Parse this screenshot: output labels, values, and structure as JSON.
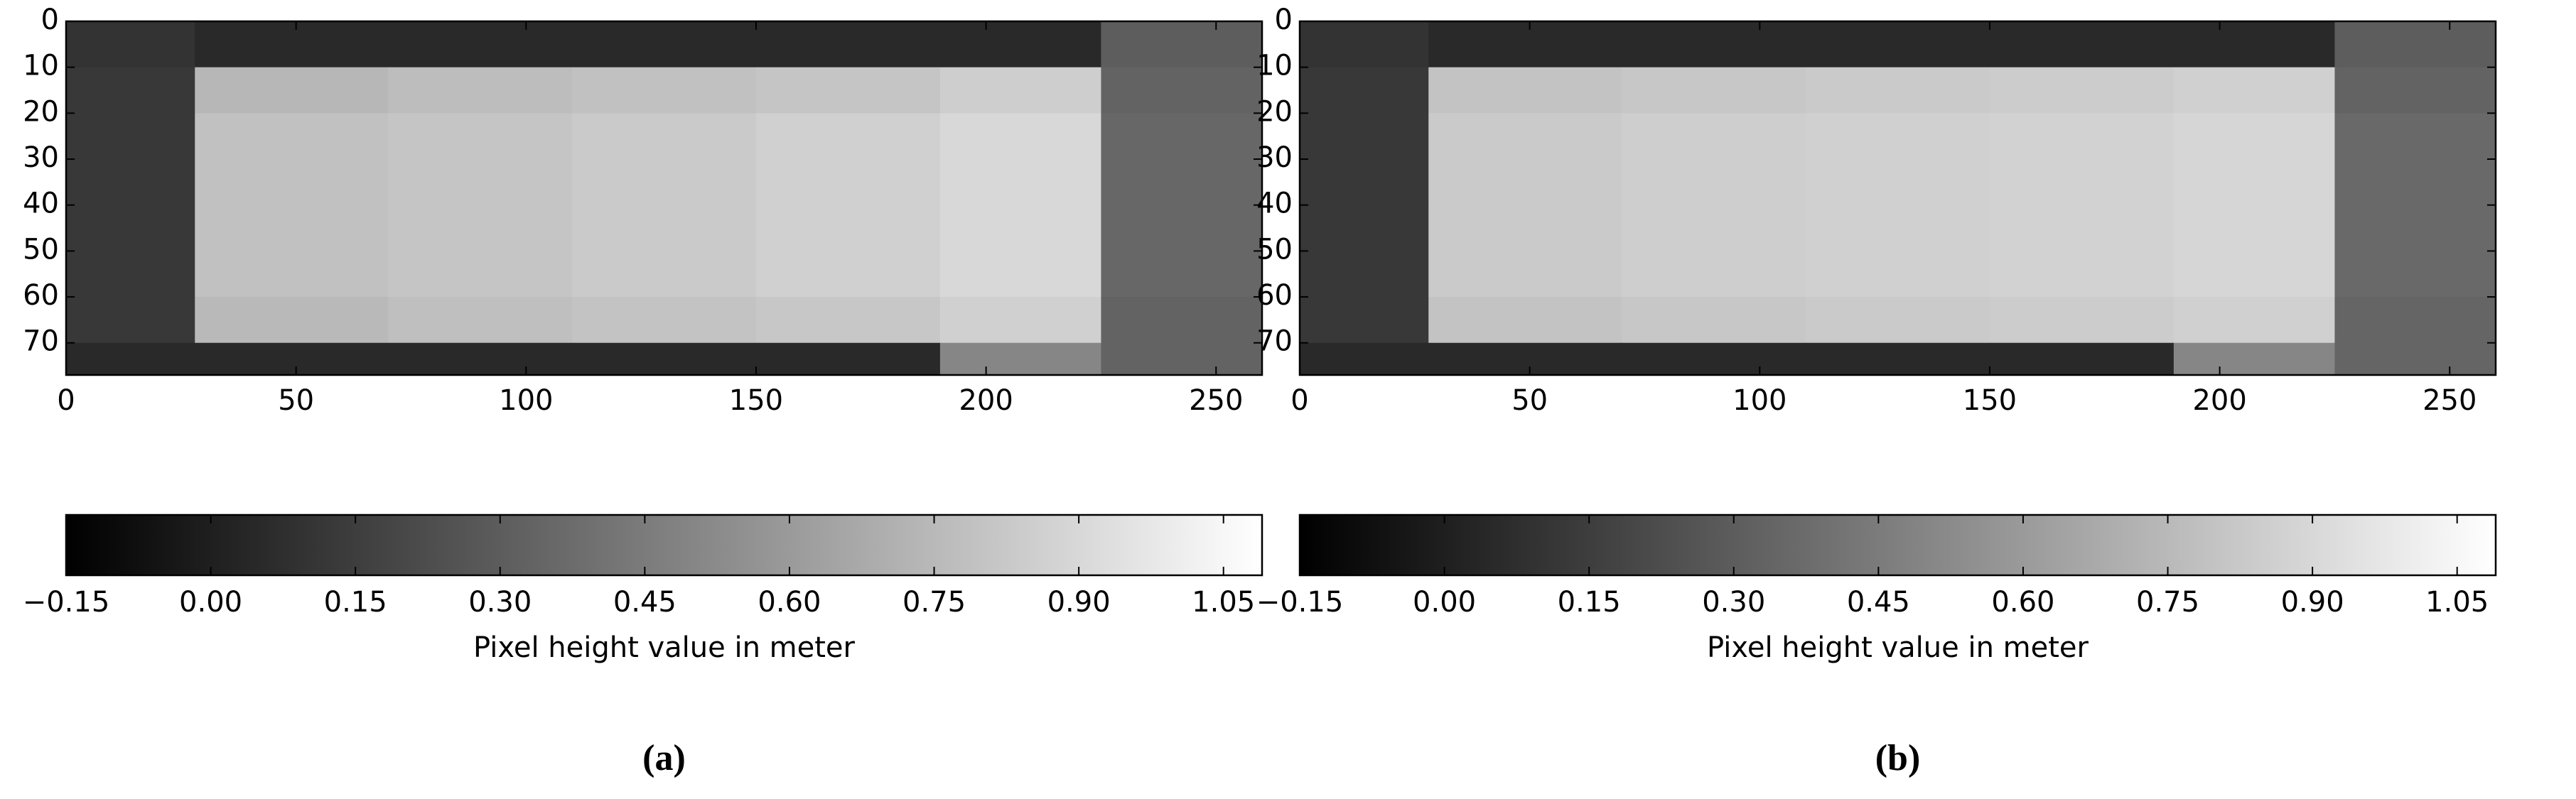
{
  "chart_data": [
    {
      "type": "heatmap",
      "caption": "(a)",
      "x": [
        0,
        28,
        70,
        110,
        150,
        190,
        225,
        260
      ],
      "y": [
        0,
        10,
        20,
        40,
        60,
        70,
        77
      ],
      "z": [
        [
          0.1,
          0.05,
          0.05,
          0.05,
          0.05,
          0.05,
          0.3
        ],
        [
          0.12,
          0.74,
          0.77,
          0.79,
          0.81,
          0.85,
          0.33
        ],
        [
          0.12,
          0.79,
          0.81,
          0.83,
          0.86,
          0.9,
          0.35
        ],
        [
          0.12,
          0.79,
          0.81,
          0.83,
          0.86,
          0.9,
          0.35
        ],
        [
          0.12,
          0.75,
          0.78,
          0.8,
          0.82,
          0.86,
          0.33
        ],
        [
          0.05,
          0.05,
          0.05,
          0.05,
          0.05,
          0.5,
          0.33
        ]
      ],
      "xlim": [
        0,
        260
      ],
      "ylim": [
        77,
        0
      ],
      "xticks": [
        0,
        50,
        100,
        150,
        200,
        250
      ],
      "yticks": [
        0,
        10,
        20,
        30,
        40,
        50,
        60,
        70
      ],
      "colormap": [
        "#000000",
        "#ffffff"
      ],
      "colorbar": {
        "label": "Pixel height value in meter",
        "lim": [
          -0.15,
          1.09
        ],
        "ticks": [
          {
            "value": -0.15,
            "label": "−0.15"
          },
          {
            "value": 0,
            "label": "0.00"
          },
          0.15,
          {
            "value": 0.3,
            "label": "0.30"
          },
          0.45,
          {
            "value": 0.6,
            "label": "0.60"
          },
          0.75,
          {
            "value": 0.9,
            "label": "0.90"
          },
          1.05
        ]
      }
    },
    {
      "type": "heatmap",
      "caption": "(b)",
      "x": [
        0,
        28,
        70,
        110,
        150,
        190,
        225,
        260
      ],
      "y": [
        0,
        10,
        20,
        40,
        60,
        70,
        77
      ],
      "z": [
        [
          0.1,
          0.05,
          0.05,
          0.05,
          0.05,
          0.05,
          0.3
        ],
        [
          0.12,
          0.8,
          0.82,
          0.83,
          0.84,
          0.86,
          0.33
        ],
        [
          0.12,
          0.83,
          0.85,
          0.86,
          0.87,
          0.89,
          0.36
        ],
        [
          0.12,
          0.83,
          0.85,
          0.86,
          0.87,
          0.89,
          0.36
        ],
        [
          0.12,
          0.8,
          0.82,
          0.83,
          0.84,
          0.86,
          0.34
        ],
        [
          0.05,
          0.05,
          0.05,
          0.05,
          0.05,
          0.5,
          0.34
        ]
      ],
      "xlim": [
        0,
        260
      ],
      "ylim": [
        77,
        0
      ],
      "xticks": [
        0,
        50,
        100,
        150,
        200,
        250
      ],
      "yticks": [
        0,
        10,
        20,
        30,
        40,
        50,
        60,
        70
      ],
      "colormap": [
        "#000000",
        "#ffffff"
      ],
      "colorbar": {
        "label": "Pixel height value in meter",
        "lim": [
          -0.15,
          1.09
        ],
        "ticks": [
          {
            "value": -0.15,
            "label": "−0.15"
          },
          {
            "value": 0,
            "label": "0.00"
          },
          0.15,
          {
            "value": 0.3,
            "label": "0.30"
          },
          0.45,
          {
            "value": 0.6,
            "label": "0.60"
          },
          0.75,
          {
            "value": 0.9,
            "label": "0.90"
          },
          1.05
        ]
      }
    }
  ]
}
